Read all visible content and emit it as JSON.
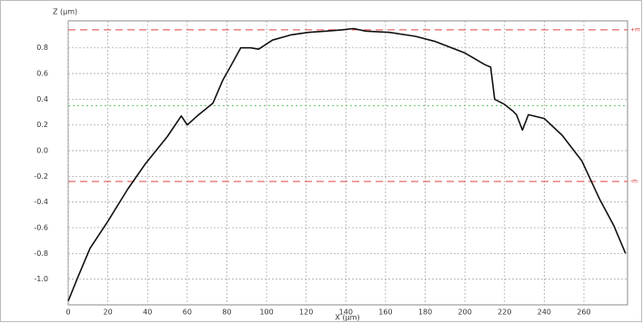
{
  "chart_data": {
    "type": "line",
    "y_label": "Z (µm)",
    "x_label": "X (µm)",
    "x": [
      0,
      5,
      11,
      20,
      30,
      39,
      50,
      57,
      60,
      65,
      69,
      73,
      78,
      82,
      87,
      92,
      96,
      103,
      112,
      121,
      130,
      138,
      144,
      150,
      162,
      175,
      185,
      200,
      210,
      213,
      215,
      220,
      224,
      226,
      229,
      232,
      240,
      249,
      259,
      268,
      275,
      281
    ],
    "series": [
      {
        "color": "#111111",
        "values": [
          -1.17,
          -0.98,
          -0.76,
          -0.55,
          -0.3,
          -0.1,
          0.11,
          0.27,
          0.2,
          0.27,
          0.32,
          0.37,
          0.55,
          0.66,
          0.8,
          0.8,
          0.79,
          0.86,
          0.9,
          0.92,
          0.93,
          0.94,
          0.95,
          0.93,
          0.92,
          0.89,
          0.85,
          0.76,
          0.67,
          0.65,
          0.4,
          0.36,
          0.31,
          0.28,
          0.16,
          0.28,
          0.25,
          0.12,
          -0.08,
          -0.38,
          -0.58,
          -0.8
        ]
      }
    ],
    "xlim": [
      0,
      282
    ],
    "xticks": [
      0,
      20,
      40,
      60,
      80,
      100,
      120,
      140,
      160,
      180,
      200,
      220,
      240,
      260
    ],
    "ylim": [
      -1.2,
      1.01
    ],
    "yticks": [
      {
        "value": -1,
        "label": "-1.0"
      },
      -0.8,
      -0.6,
      -0.4,
      -0.2,
      {
        "value": 0,
        "label": "0.0"
      },
      0.2,
      0.4,
      0.6,
      0.8
    ],
    "grid": true,
    "reference_lines": [
      {
        "value": 0.94,
        "color": "#e04040",
        "label": "+m"
      },
      {
        "value": 0.35,
        "color": "#66cc66"
      },
      {
        "value": -0.24,
        "color": "#e04040",
        "label": "-m"
      }
    ]
  }
}
